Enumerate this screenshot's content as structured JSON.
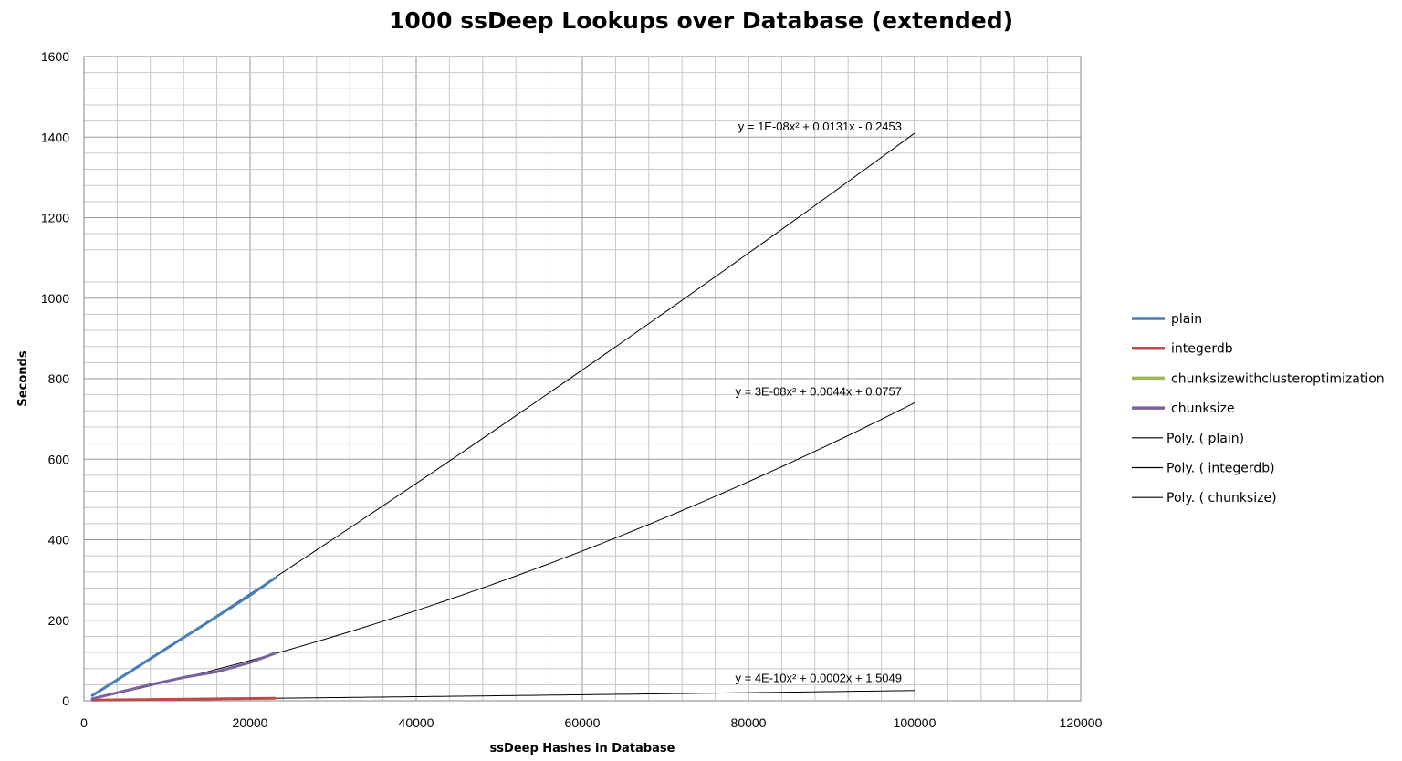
{
  "chart_data": {
    "type": "line",
    "title": "1000 ssDeep Lookups over Database (extended)",
    "xlabel": "ssDeep Hashes in Database",
    "ylabel": "Seconds",
    "xlim": [
      0,
      120000
    ],
    "ylim": [
      0,
      1600
    ],
    "x_ticks": [
      "0",
      "20000",
      "40000",
      "60000",
      "80000",
      "100000",
      "120000"
    ],
    "y_ticks": [
      "0",
      "200",
      "400",
      "600",
      "800",
      "1000",
      "1200",
      "1400",
      "1600"
    ],
    "grid": true,
    "legend_position": "right",
    "series": [
      {
        "name": "plain",
        "color": "#4a7ebb",
        "x": [
          1000,
          5000,
          10000,
          15000,
          20000,
          23000
        ],
        "y": [
          13,
          65,
          131,
          196,
          262,
          305
        ]
      },
      {
        "name": "integerdb",
        "color": "#be4b48",
        "x": [
          1000,
          5000,
          10000,
          15000,
          20000,
          23000
        ],
        "y": [
          1.7,
          2.5,
          3.5,
          4.6,
          5.7,
          6.3
        ]
      },
      {
        "name": "chunksize with cluster optimization",
        "color": "#98b954",
        "x": [],
        "y": []
      },
      {
        "name": "chunksize",
        "color": "#7d60a0",
        "x": [
          1000,
          5000,
          8000,
          12000,
          16000,
          20000,
          23000
        ],
        "y": [
          5,
          25,
          40,
          58,
          72,
          95,
          118
        ]
      }
    ],
    "trendlines": [
      {
        "name": "Poly. ( plain)",
        "of": "plain",
        "a": 1e-08,
        "b": 0.0131,
        "c": -0.2453,
        "x_range": [
          1000,
          100000
        ],
        "equation": "y = 1E-08x² + 0.0131x - 0.2453"
      },
      {
        "name": "Poly. ( integerdb)",
        "of": "integerdb",
        "a": 4e-10,
        "b": 0.0002,
        "c": 1.5049,
        "x_range": [
          1000,
          100000
        ],
        "equation": "y = 4E-10x² + 0.0002x + 1.5049"
      },
      {
        "name": "Poly. ( chunksize)",
        "of": "chunksize",
        "a": 3e-08,
        "b": 0.0044,
        "c": 0.0757,
        "x_range": [
          1000,
          100000
        ],
        "equation": "y = 3E-08x² + 0.0044x + 0.0757"
      }
    ],
    "legend": [
      {
        "label": "plain",
        "color": "#4a7ebb",
        "kind": "series"
      },
      {
        "label": "integerdb",
        "color": "#be4b48",
        "kind": "series"
      },
      {
        "label": "chunksizewithclusteroptimization",
        "color": "#98b954",
        "kind": "series"
      },
      {
        "label": "chunksize",
        "color": "#7d60a0",
        "kind": "series"
      },
      {
        "label": "Poly. ( plain)",
        "color": "#000000",
        "kind": "trend"
      },
      {
        "label": "Poly. ( integerdb)",
        "color": "#000000",
        "kind": "trend"
      },
      {
        "label": "Poly. ( chunksize)",
        "color": "#000000",
        "kind": "trend"
      }
    ]
  }
}
